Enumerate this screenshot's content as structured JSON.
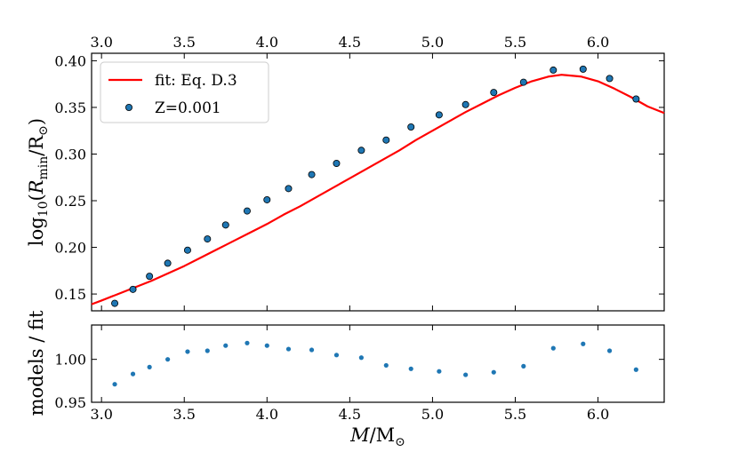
{
  "chart_data": [
    {
      "type": "scatter",
      "panel": "main",
      "xlabel": "M/M☉",
      "ylabel": "log10(Rmin/R☉)",
      "xlim": [
        2.94,
        6.4
      ],
      "ylim": [
        0.132,
        0.408
      ],
      "xticks": [
        3.0,
        3.5,
        4.0,
        4.5,
        5.0,
        5.5,
        6.0
      ],
      "xtick_labels": [
        "3.0",
        "3.5",
        "4.0",
        "4.5",
        "5.0",
        "5.5",
        "6.0"
      ],
      "yticks": [
        0.15,
        0.2,
        0.25,
        0.3,
        0.35,
        0.4
      ],
      "ytick_labels": [
        "0.15",
        "0.20",
        "0.25",
        "0.30",
        "0.35",
        "0.40"
      ],
      "legend_position": "top-left",
      "series": [
        {
          "name": "fit: Eq. D.3",
          "kind": "line",
          "color": "#ff0000",
          "x": [
            2.94,
            3.0,
            3.1,
            3.2,
            3.3,
            3.4,
            3.5,
            3.6,
            3.7,
            3.8,
            3.9,
            4.0,
            4.1,
            4.2,
            4.3,
            4.4,
            4.5,
            4.6,
            4.7,
            4.8,
            4.9,
            5.0,
            5.1,
            5.2,
            5.3,
            5.4,
            5.5,
            5.6,
            5.7,
            5.78,
            5.9,
            6.0,
            6.1,
            6.2,
            6.3,
            6.4
          ],
          "y": [
            0.139,
            0.143,
            0.15,
            0.157,
            0.164,
            0.172,
            0.18,
            0.189,
            0.198,
            0.207,
            0.216,
            0.225,
            0.235,
            0.244,
            0.254,
            0.264,
            0.274,
            0.284,
            0.294,
            0.304,
            0.315,
            0.325,
            0.335,
            0.345,
            0.354,
            0.363,
            0.371,
            0.378,
            0.383,
            0.385,
            0.383,
            0.378,
            0.37,
            0.361,
            0.351,
            0.344
          ]
        },
        {
          "name": "Z=0.001",
          "kind": "scatter",
          "color": "#1f77b4",
          "x": [
            3.08,
            3.19,
            3.29,
            3.4,
            3.52,
            3.64,
            3.75,
            3.88,
            4.0,
            4.13,
            4.27,
            4.42,
            4.57,
            4.72,
            4.87,
            5.04,
            5.2,
            5.37,
            5.55,
            5.73,
            5.91,
            6.07,
            6.23
          ],
          "y": [
            0.14,
            0.155,
            0.169,
            0.183,
            0.197,
            0.209,
            0.224,
            0.239,
            0.251,
            0.263,
            0.278,
            0.29,
            0.304,
            0.315,
            0.329,
            0.342,
            0.353,
            0.366,
            0.377,
            0.39,
            0.391,
            0.381,
            0.359
          ]
        }
      ]
    },
    {
      "type": "scatter",
      "panel": "residual",
      "xlabel": "M/M☉",
      "ylabel": "models / fit",
      "xlim": [
        2.94,
        6.4
      ],
      "ylim": [
        0.95,
        1.04
      ],
      "xticks": [
        3.0,
        3.5,
        4.0,
        4.5,
        5.0,
        5.5,
        6.0
      ],
      "xtick_labels": [
        "3.0",
        "3.5",
        "4.0",
        "4.5",
        "5.0",
        "5.5",
        "6.0"
      ],
      "yticks": [
        0.95,
        1.0
      ],
      "ytick_labels": [
        "0.95",
        "1.00"
      ],
      "series": [
        {
          "name": "models / fit",
          "kind": "scatter",
          "color": "#1f77b4",
          "x": [
            3.08,
            3.19,
            3.29,
            3.4,
            3.52,
            3.64,
            3.75,
            3.88,
            4.0,
            4.13,
            4.27,
            4.42,
            4.57,
            4.72,
            4.87,
            5.04,
            5.2,
            5.37,
            5.55,
            5.73,
            5.91,
            6.07,
            6.23
          ],
          "y": [
            0.971,
            0.983,
            0.991,
            1.0,
            1.009,
            1.01,
            1.016,
            1.019,
            1.016,
            1.012,
            1.011,
            1.005,
            1.002,
            0.993,
            0.989,
            0.986,
            0.982,
            0.985,
            0.992,
            1.013,
            1.018,
            1.01,
            0.988
          ]
        }
      ]
    }
  ]
}
